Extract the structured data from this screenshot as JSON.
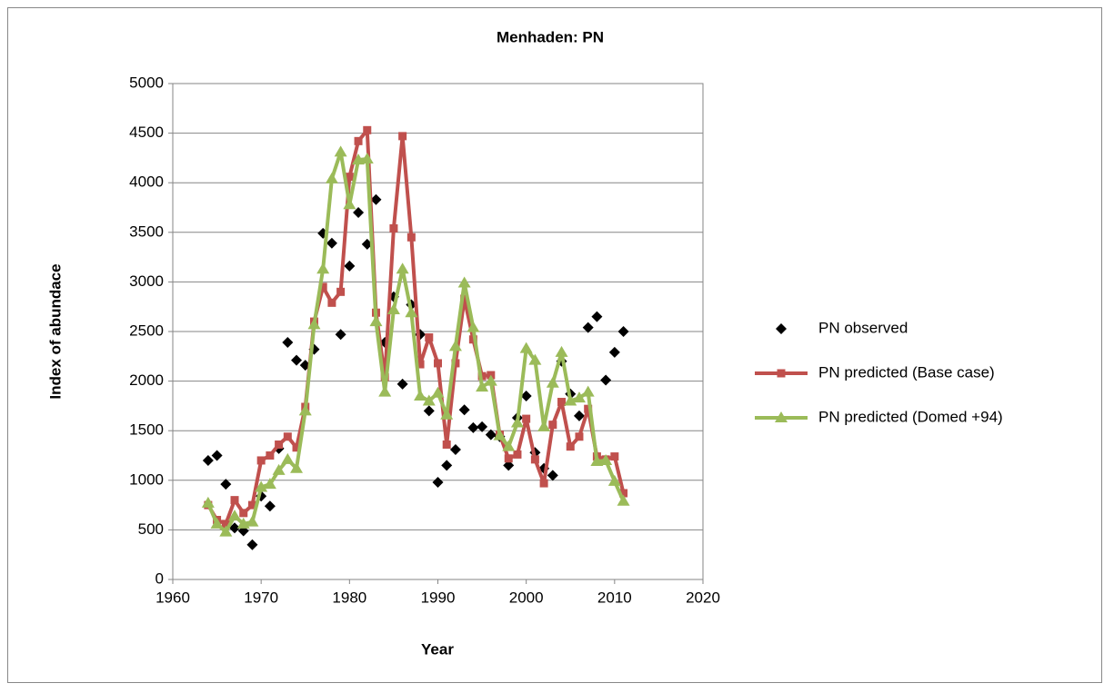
{
  "chart_data": {
    "type": "line",
    "title": "Menhaden: PN",
    "xlabel": "Year",
    "ylabel": "Index of abundace",
    "x": [
      1964,
      1965,
      1966,
      1967,
      1968,
      1969,
      1970,
      1971,
      1972,
      1973,
      1974,
      1975,
      1976,
      1977,
      1978,
      1979,
      1980,
      1981,
      1982,
      1983,
      1984,
      1985,
      1986,
      1987,
      1988,
      1989,
      1990,
      1991,
      1992,
      1993,
      1994,
      1995,
      1996,
      1997,
      1998,
      1999,
      2000,
      2001,
      2002,
      2003,
      2004,
      2005,
      2006,
      2007,
      2008,
      2009,
      2010,
      2011
    ],
    "series": [
      {
        "name": "PN observed",
        "color": "#000000",
        "line": false,
        "marker": "diamond",
        "values": [
          1200,
          1250,
          960,
          520,
          490,
          350,
          840,
          740,
          1320,
          2390,
          2210,
          2160,
          2320,
          3490,
          3390,
          2470,
          3160,
          3700,
          3380,
          3830,
          2390,
          2850,
          1970,
          2770,
          2470,
          1700,
          980,
          1150,
          1310,
          1710,
          1530,
          1540,
          1460,
          1440,
          1150,
          1630,
          1850,
          1280,
          1120,
          1050,
          2200,
          1870,
          1650,
          2540,
          2650,
          2010,
          2290,
          2500
        ]
      },
      {
        "name": "PN predicted (Base case)",
        "color": "#c0504d",
        "line": true,
        "marker": "square",
        "values": [
          750,
          600,
          560,
          800,
          670,
          750,
          1200,
          1250,
          1360,
          1440,
          1330,
          1740,
          2600,
          2950,
          2790,
          2900,
          4060,
          4420,
          4530,
          2690,
          2040,
          3540,
          4470,
          3450,
          2170,
          2440,
          2180,
          1360,
          2180,
          2830,
          2420,
          2050,
          2060,
          1460,
          1220,
          1260,
          1620,
          1210,
          970,
          1560,
          1790,
          1340,
          1440,
          1720,
          1240,
          1210,
          1240,
          870
        ]
      },
      {
        "name": "PN predicted (Domed +94)",
        "color": "#9bbb59",
        "line": true,
        "marker": "triangle",
        "values": [
          770,
          560,
          480,
          640,
          560,
          580,
          930,
          960,
          1100,
          1210,
          1120,
          1700,
          2570,
          3130,
          4040,
          4310,
          3780,
          4230,
          4240,
          2600,
          1890,
          2720,
          3130,
          2690,
          1850,
          1800,
          1880,
          1660,
          2350,
          2990,
          2540,
          1940,
          2000,
          1450,
          1340,
          1580,
          2330,
          2210,
          1540,
          1980,
          2290,
          1800,
          1830,
          1890,
          1190,
          1200,
          990,
          790
        ]
      }
    ],
    "xlim": [
      1960,
      2020
    ],
    "xticks": [
      1960,
      1970,
      1980,
      1990,
      2000,
      2010,
      2020
    ],
    "ylim": [
      0,
      5000
    ],
    "yticks": [
      0,
      500,
      1000,
      1500,
      2000,
      2500,
      3000,
      3500,
      4000,
      4500,
      5000
    ],
    "grid": true,
    "legend": "right"
  }
}
